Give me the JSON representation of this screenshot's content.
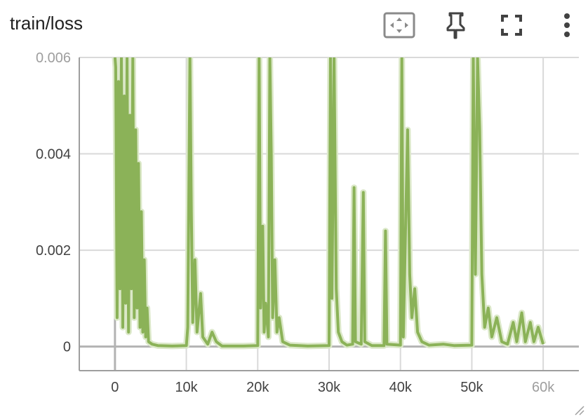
{
  "card": {
    "title": "train/loss",
    "toolbar": [
      {
        "icon": "fit-domain-icon",
        "label": "Fit domain to data"
      },
      {
        "icon": "pin-icon",
        "label": "Pin card"
      },
      {
        "icon": "fullscreen-icon",
        "label": "Toggle full size"
      },
      {
        "icon": "more-vert-icon",
        "label": "More"
      }
    ]
  },
  "colors": {
    "smoothed": "#8bb258",
    "raw": "#dbe8c8",
    "grid": "#d9d9d9",
    "axis": "#9e9e9e",
    "zero": "#b3b3b3"
  },
  "chart_data": {
    "type": "line",
    "title": "train/loss",
    "xlabel": "",
    "ylabel": "",
    "xlim": [
      -5000,
      65000
    ],
    "ylim": [
      -0.0005,
      0.006
    ],
    "x_ticks": [
      0,
      10000,
      20000,
      30000,
      40000,
      50000,
      60000
    ],
    "x_tick_labels": [
      "0",
      "10k",
      "20k",
      "30k",
      "40k",
      "50k",
      "60k"
    ],
    "y_ticks": [
      0,
      0.002,
      0.004,
      0.006
    ],
    "y_tick_labels": [
      "0",
      "0.002",
      "0.004",
      "0.006"
    ],
    "grid": true,
    "legend": "none",
    "series": [
      {
        "style": "smoothed",
        "points": [
          [
            0,
            0.006
          ],
          [
            100,
            0.0058
          ],
          [
            300,
            0.0006
          ],
          [
            500,
            0.0055
          ],
          [
            700,
            0.0012
          ],
          [
            900,
            0.006
          ],
          [
            1100,
            0.0004
          ],
          [
            1300,
            0.0052
          ],
          [
            1500,
            0.0009
          ],
          [
            1700,
            0.006
          ],
          [
            1900,
            0.0003
          ],
          [
            2100,
            0.0048
          ],
          [
            2300,
            0.0012
          ],
          [
            2500,
            0.006
          ],
          [
            2700,
            0.0006
          ],
          [
            2900,
            0.0045
          ],
          [
            3100,
            0.0008
          ],
          [
            3300,
            0.0038
          ],
          [
            3500,
            0.0004
          ],
          [
            3700,
            0.0028
          ],
          [
            3900,
            0.0003
          ],
          [
            4100,
            0.0018
          ],
          [
            4300,
            0.0002
          ],
          [
            4500,
            0.0008
          ],
          [
            4700,
            0.0001
          ],
          [
            5200,
            5e-05
          ],
          [
            6000,
            2e-05
          ],
          [
            8000,
            1e-05
          ],
          [
            10000,
            2e-05
          ],
          [
            10200,
            0.0004
          ],
          [
            10500,
            0.006
          ],
          [
            10700,
            0.0028
          ],
          [
            10900,
            0.0005
          ],
          [
            11200,
            0.0018
          ],
          [
            11500,
            0.0003
          ],
          [
            12000,
            0.0011
          ],
          [
            12300,
            0.0002
          ],
          [
            13000,
            5e-05
          ],
          [
            13600,
            0.0003
          ],
          [
            14200,
            0.0001
          ],
          [
            15000,
            1e-05
          ],
          [
            18000,
            1e-05
          ],
          [
            20000,
            2e-05
          ],
          [
            20200,
            0.006
          ],
          [
            20400,
            0.0008
          ],
          [
            20700,
            0.0025
          ],
          [
            20900,
            0.0003
          ],
          [
            21100,
            0.0009
          ],
          [
            21500,
            0.0002
          ],
          [
            21700,
            0.006
          ],
          [
            21900,
            0.004
          ],
          [
            22100,
            0.0006
          ],
          [
            22400,
            0.0018
          ],
          [
            22700,
            0.0003
          ],
          [
            23000,
            0.0006
          ],
          [
            23500,
            0.0001
          ],
          [
            24500,
            3e-05
          ],
          [
            27000,
            1e-05
          ],
          [
            30000,
            2e-05
          ],
          [
            30200,
            0.006
          ],
          [
            30400,
            0.001
          ],
          [
            30700,
            0.006
          ],
          [
            31000,
            0.0012
          ],
          [
            31300,
            0.0003
          ],
          [
            31800,
            0.0001
          ],
          [
            32500,
            3e-05
          ],
          [
            33300,
            5e-05
          ],
          [
            33500,
            0.0033
          ],
          [
            33700,
            0.0001
          ],
          [
            34500,
            5e-05
          ],
          [
            34800,
            0.0032
          ],
          [
            35000,
            0.0001
          ],
          [
            36000,
            2e-05
          ],
          [
            37700,
            2e-05
          ],
          [
            37900,
            0.0024
          ],
          [
            38100,
            5e-05
          ],
          [
            40000,
            3e-05
          ],
          [
            40200,
            0.006
          ],
          [
            40400,
            0.0002
          ],
          [
            41000,
            0.0045
          ],
          [
            41300,
            0.0015
          ],
          [
            41600,
            0.0006
          ],
          [
            42000,
            0.0012
          ],
          [
            42400,
            0.0003
          ],
          [
            43000,
            0.0001
          ],
          [
            44000,
            3e-05
          ],
          [
            46000,
            5e-05
          ],
          [
            47500,
            2e-05
          ],
          [
            50000,
            3e-05
          ],
          [
            50200,
            0.006
          ],
          [
            50500,
            0.0015
          ],
          [
            50800,
            0.006
          ],
          [
            51100,
            0.0045
          ],
          [
            51400,
            0.0015
          ],
          [
            51800,
            0.0004
          ],
          [
            52300,
            0.0008
          ],
          [
            52800,
            0.0002
          ],
          [
            53500,
            0.0006
          ],
          [
            54200,
            0.0001
          ],
          [
            55000,
            5e-05
          ],
          [
            55800,
            0.0005
          ],
          [
            56300,
            0.0001
          ],
          [
            57000,
            0.0007
          ],
          [
            57500,
            0.0001
          ],
          [
            58200,
            0.0005
          ],
          [
            58700,
            0.0001
          ],
          [
            59300,
            0.0004
          ],
          [
            60000,
            5e-05
          ]
        ]
      }
    ]
  }
}
